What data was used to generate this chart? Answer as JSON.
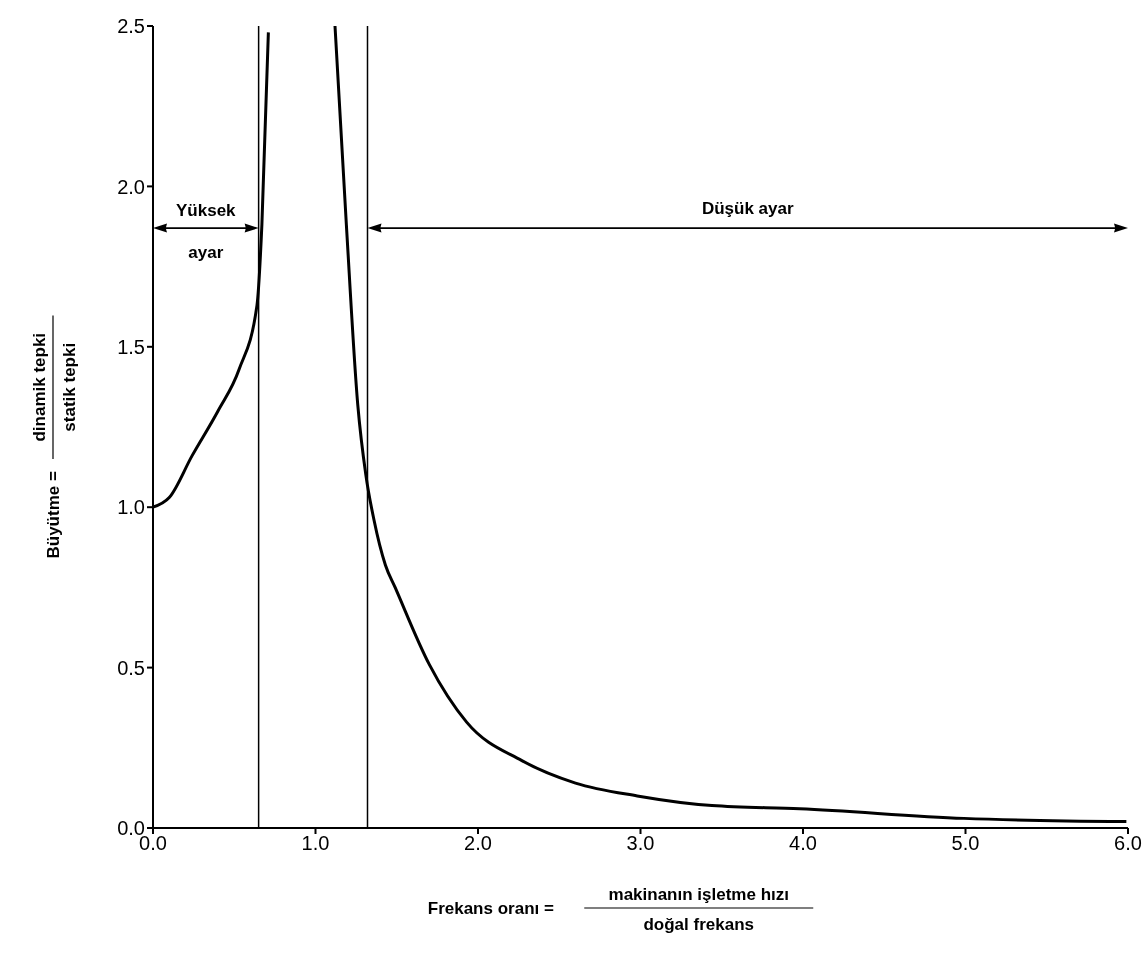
{
  "chart_data": {
    "type": "line",
    "xlabel": "Frekans oranı =",
    "ylabel": "Büyütme =",
    "annotations": [
      "makinanın işletme hızı",
      "doğal frekans",
      "dinamik tepki",
      "statik tepki",
      "Yüksek ayar",
      "Düşük ayar"
    ],
    "xlim": [
      0,
      6
    ],
    "ylim": [
      0,
      2.5
    ],
    "xticks": [
      {
        "value": 0,
        "label": "0.0"
      },
      {
        "value": 1,
        "label": "1.0"
      },
      {
        "value": 2,
        "label": "2.0"
      },
      {
        "value": 3,
        "label": "3.0"
      },
      {
        "value": 4,
        "label": "4.0"
      },
      {
        "value": 5,
        "label": "5.0"
      },
      {
        "value": 6,
        "label": "6.0"
      }
    ],
    "yticks": [
      {
        "value": 0,
        "label": "0.0"
      },
      {
        "value": 0.5,
        "label": "0.5"
      },
      {
        "value": 1,
        "label": "1.0"
      },
      {
        "value": 1.5,
        "label": "1.5"
      },
      {
        "value": 2,
        "label": "2.0"
      },
      {
        "value": 2.5,
        "label": "2.5"
      }
    ],
    "x": [
      0,
      0.1,
      0.24,
      0.4,
      0.53,
      0.64,
      0.67,
      0.71,
      0.9,
      1.12,
      1.19,
      1.26,
      1.31,
      1.36,
      1.43,
      1.49,
      1.7,
      1.93,
      2.27,
      2.6,
      2.98,
      3.44,
      3.98,
      4.99,
      5.99
    ],
    "series": [
      {
        "color": "#000000",
        "values": [
          1.0,
          1.03,
          1.16,
          1.3,
          1.43,
          1.63,
          1.88,
          2.48,
          null,
          2.5,
          1.88,
          1.32,
          1.1,
          0.96,
          0.82,
          0.75,
          0.51,
          0.33,
          0.21,
          0.14,
          0.1,
          0.07,
          0.06,
          0.03,
          0.02
        ]
      }
    ],
    "ref_lines": [
      {
        "axis": "x",
        "value": 0.65,
        "color": "#000000"
      },
      {
        "axis": "x",
        "value": 1.32,
        "color": "#000000"
      }
    ],
    "grid": false,
    "marker": "none",
    "line_style": "solid"
  }
}
